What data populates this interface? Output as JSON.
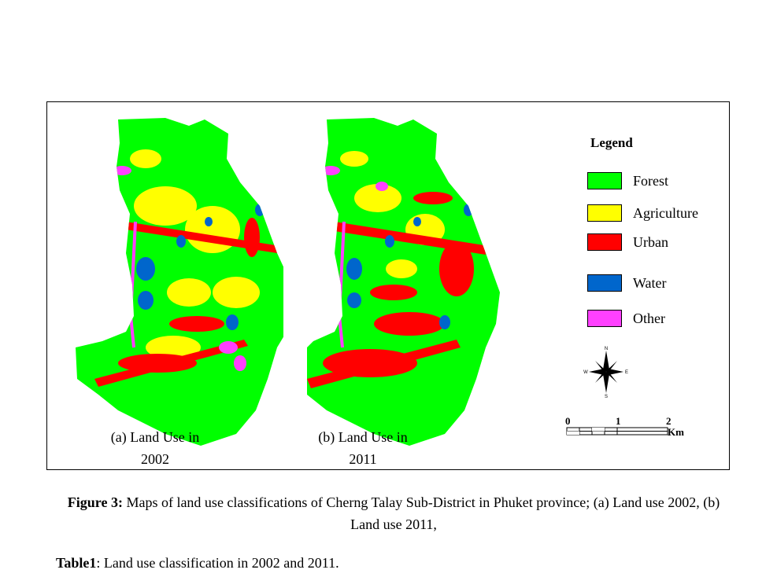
{
  "maps": [
    {
      "caption": "(a) Land Use in\n2002",
      "caption_line1": "(a) Land Use in",
      "caption_line2": "2002"
    },
    {
      "caption": "(b) Land Use in\n2011",
      "caption_line1": "(b) Land Use in",
      "caption_line2": "2011"
    }
  ],
  "legend": {
    "title": "Legend",
    "items": [
      {
        "label": "Forest",
        "color": "#00ff00"
      },
      {
        "label": "Agriculture",
        "color": "#ffff00"
      },
      {
        "label": "Urban",
        "color": "#ff0000"
      },
      {
        "label": "Water",
        "color": "#0066cc"
      },
      {
        "label": "Other",
        "color": "#ff40ff"
      }
    ]
  },
  "north_arrow": {
    "n": "N",
    "s": "S",
    "e": "E",
    "w": "W",
    "icon": "compass-rose-icon"
  },
  "scale_bar": {
    "ticks": [
      "0",
      "1",
      "2"
    ],
    "unit": "Km"
  },
  "figure_caption": {
    "label": "Figure 3:",
    "text": "Maps of land use classifications of Cherng Talay Sub-District in Phuket province; (a) Land use 2002, (b) Land use 2011,"
  },
  "table_caption": {
    "label": "Table1",
    "text": ": Land use classification in 2002 and 2011."
  }
}
